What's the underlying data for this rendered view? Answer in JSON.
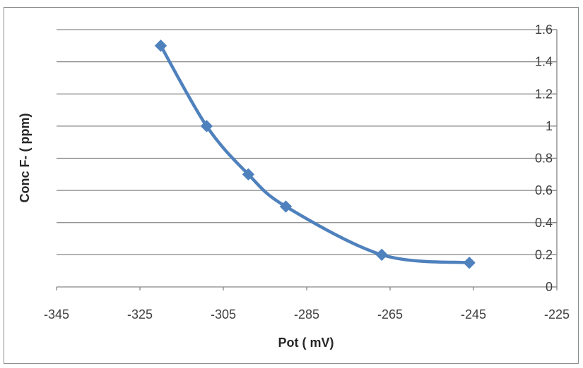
{
  "chart_data": {
    "type": "scatter",
    "xlabel": "Pot ( mV)",
    "ylabel": "Conc F- ( ppm)",
    "xlim": [
      -345,
      -225
    ],
    "ylim": [
      0,
      1.6
    ],
    "x_ticks": [
      "-345",
      "-325",
      "-305",
      "-285",
      "-265",
      "-245",
      "-225"
    ],
    "y_ticks": [
      "0",
      "0.2",
      "0.4",
      "0.6",
      "0.8",
      "1",
      "1.2",
      "1.4",
      "1.6"
    ],
    "grid": true,
    "legend": "none",
    "y_axis_position": "right",
    "line_style": "smooth",
    "marker": "diamond",
    "series": [
      {
        "color": "#4f81bd",
        "x": [
          -320,
          -309,
          -299,
          -290,
          -267,
          -246
        ],
        "y": [
          1.5,
          1.0,
          0.7,
          0.5,
          0.2,
          0.15
        ]
      }
    ]
  }
}
